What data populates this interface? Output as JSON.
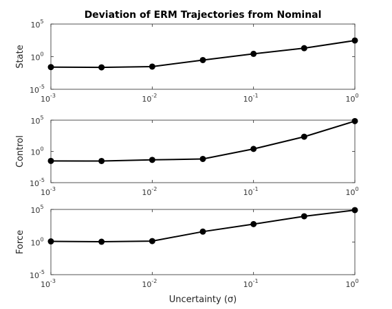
{
  "chart_data": {
    "type": "line",
    "title": "Deviation of ERM Trajectories from Nominal",
    "xlabel": "Uncertainty (σ)",
    "xscale": "log",
    "xlim": [
      0.001,
      1
    ],
    "xticks": [
      {
        "base": "10",
        "exp": "-3"
      },
      {
        "base": "10",
        "exp": "-2"
      },
      {
        "base": "10",
        "exp": "-1"
      },
      {
        "base": "10",
        "exp": "0"
      }
    ],
    "yscale": "log",
    "ylim": [
      1e-05,
      100000
    ],
    "yticks": [
      {
        "base": "10",
        "exp": "5"
      },
      {
        "base": "10",
        "exp": "0"
      },
      {
        "base": "10",
        "exp": "-5"
      }
    ],
    "grid": false,
    "x": [
      0.001,
      0.00316,
      0.01,
      0.0316,
      0.1,
      0.316,
      1
    ],
    "subplots": [
      {
        "ylabel": "State",
        "values": [
          0.025,
          0.023,
          0.03,
          0.3,
          2.7,
          20,
          300
        ]
      },
      {
        "ylabel": "Control",
        "values": [
          0.03,
          0.029,
          0.044,
          0.062,
          2.5,
          224,
          70800
        ]
      },
      {
        "ylabel": "Force",
        "values": [
          1.26,
          1.12,
          1.41,
          39.8,
          562,
          8900,
          79400
        ]
      }
    ]
  }
}
